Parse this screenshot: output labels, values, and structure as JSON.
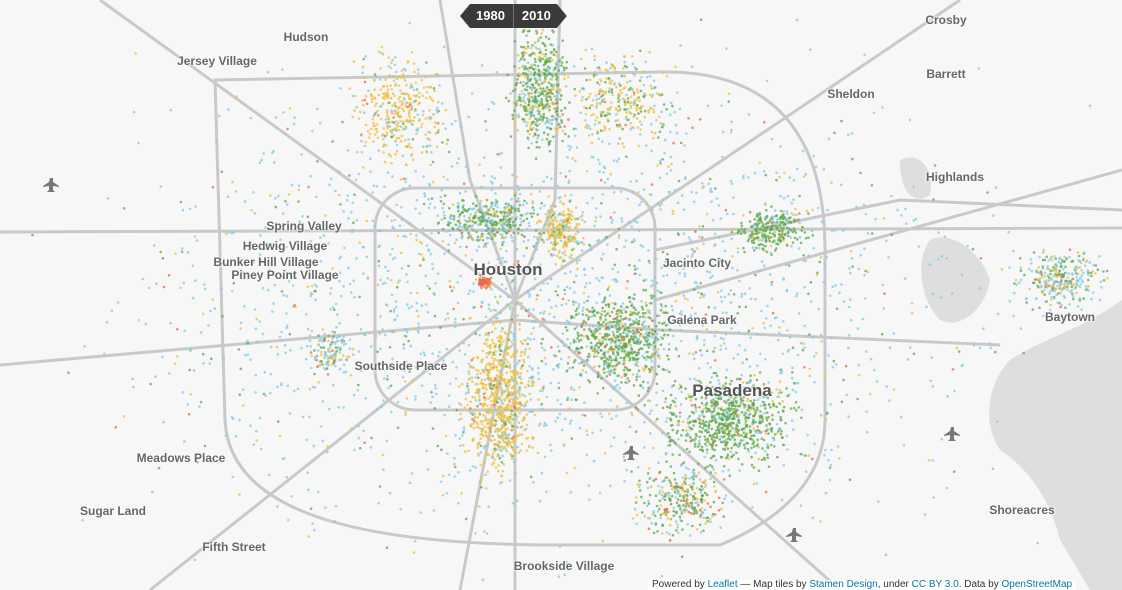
{
  "toggle": {
    "options": [
      "1980",
      "2010"
    ]
  },
  "places": [
    "Hudson",
    "Jersey Village",
    "Crosby",
    "Barrett",
    "Sheldon",
    "Highlands",
    "Spring Valley",
    "Hedwig Village",
    "Bunker Hill Village",
    "Piney Point Village",
    "Houston",
    "Jacinto City",
    "Galena Park",
    "Baytown",
    "Southside Place",
    "Pasadena",
    "Meadows Place",
    "Sugar Land",
    "Shoreacres",
    "Fifth Street",
    "Brookside Village"
  ],
  "attribution": {
    "parts": [
      "Powered by",
      "Leaflet",
      "— Map tiles by",
      "Stamen Design",
      ", under",
      "CC BY 3.0",
      ". Data by",
      "OpenStreetMap"
    ]
  }
}
